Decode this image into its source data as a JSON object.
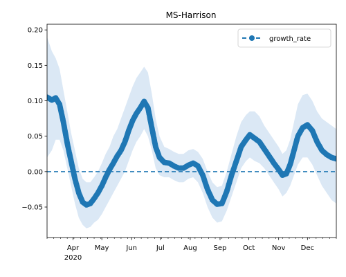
{
  "chart_data": {
    "type": "line",
    "title": "MS-Harrison",
    "xlabel": "",
    "ylabel": "",
    "x_range": [
      "2020-03-05",
      "2020-12-31"
    ],
    "ylim": [
      -0.093,
      0.208
    ],
    "yticks": [
      -0.05,
      0.0,
      0.05,
      0.1,
      0.15,
      0.2
    ],
    "ytick_labels": [
      "−0.05",
      "0.00",
      "0.05",
      "0.10",
      "0.15",
      "0.20"
    ],
    "xticks": [
      {
        "date": "2020-04-01",
        "label": "Apr",
        "sublabel": "2020"
      },
      {
        "date": "2020-05-01",
        "label": "May",
        "sublabel": ""
      },
      {
        "date": "2020-06-01",
        "label": "Jun",
        "sublabel": ""
      },
      {
        "date": "2020-07-01",
        "label": "Jul",
        "sublabel": ""
      },
      {
        "date": "2020-08-01",
        "label": "Aug",
        "sublabel": ""
      },
      {
        "date": "2020-09-01",
        "label": "Sep",
        "sublabel": ""
      },
      {
        "date": "2020-10-01",
        "label": "Oct",
        "sublabel": ""
      },
      {
        "date": "2020-11-01",
        "label": "Nov",
        "sublabel": ""
      },
      {
        "date": "2020-12-01",
        "label": "Dec",
        "sublabel": ""
      }
    ],
    "grid": false,
    "legend": {
      "position": "top-right"
    },
    "reference_line": {
      "y": 0.0,
      "style": "dashed",
      "color": "#1f77b4"
    },
    "series": [
      {
        "name": "growth_rate",
        "color": "#1f77b4",
        "band_color": "#dbe8f5",
        "points": [
          {
            "x": "2020-03-05",
            "y": 0.105,
            "lo": 0.02,
            "hi": 0.19
          },
          {
            "x": "2020-03-10",
            "y": 0.101,
            "lo": 0.03,
            "hi": 0.17
          },
          {
            "x": "2020-03-14",
            "y": 0.104,
            "lo": 0.045,
            "hi": 0.16
          },
          {
            "x": "2020-03-18",
            "y": 0.095,
            "lo": 0.045,
            "hi": 0.145
          },
          {
            "x": "2020-03-22",
            "y": 0.07,
            "lo": 0.03,
            "hi": 0.115
          },
          {
            "x": "2020-03-26",
            "y": 0.04,
            "lo": 0.005,
            "hi": 0.085
          },
          {
            "x": "2020-03-30",
            "y": 0.015,
            "lo": -0.02,
            "hi": 0.055
          },
          {
            "x": "2020-04-03",
            "y": -0.01,
            "lo": -0.045,
            "hi": 0.03
          },
          {
            "x": "2020-04-07",
            "y": -0.03,
            "lo": -0.065,
            "hi": 0.005
          },
          {
            "x": "2020-04-11",
            "y": -0.043,
            "lo": -0.075,
            "hi": -0.01
          },
          {
            "x": "2020-04-15",
            "y": -0.047,
            "lo": -0.08,
            "hi": -0.015
          },
          {
            "x": "2020-04-19",
            "y": -0.045,
            "lo": -0.078,
            "hi": -0.015
          },
          {
            "x": "2020-04-23",
            "y": -0.038,
            "lo": -0.072,
            "hi": -0.008
          },
          {
            "x": "2020-04-27",
            "y": -0.03,
            "lo": -0.068,
            "hi": 0.0
          },
          {
            "x": "2020-05-01",
            "y": -0.02,
            "lo": -0.06,
            "hi": 0.012
          },
          {
            "x": "2020-05-05",
            "y": -0.008,
            "lo": -0.05,
            "hi": 0.025
          },
          {
            "x": "2020-05-09",
            "y": 0.003,
            "lo": -0.04,
            "hi": 0.035
          },
          {
            "x": "2020-05-13",
            "y": 0.012,
            "lo": -0.03,
            "hi": 0.05
          },
          {
            "x": "2020-05-17",
            "y": 0.022,
            "lo": -0.02,
            "hi": 0.06
          },
          {
            "x": "2020-05-21",
            "y": 0.03,
            "lo": -0.01,
            "hi": 0.075
          },
          {
            "x": "2020-05-25",
            "y": 0.042,
            "lo": 0.0,
            "hi": 0.09
          },
          {
            "x": "2020-05-29",
            "y": 0.058,
            "lo": 0.015,
            "hi": 0.105
          },
          {
            "x": "2020-06-02",
            "y": 0.072,
            "lo": 0.03,
            "hi": 0.12
          },
          {
            "x": "2020-06-06",
            "y": 0.082,
            "lo": 0.042,
            "hi": 0.132
          },
          {
            "x": "2020-06-10",
            "y": 0.09,
            "lo": 0.05,
            "hi": 0.14
          },
          {
            "x": "2020-06-14",
            "y": 0.099,
            "lo": 0.06,
            "hi": 0.148
          },
          {
            "x": "2020-06-18",
            "y": 0.09,
            "lo": 0.05,
            "hi": 0.14
          },
          {
            "x": "2020-06-22",
            "y": 0.062,
            "lo": 0.03,
            "hi": 0.11
          },
          {
            "x": "2020-06-26",
            "y": 0.035,
            "lo": 0.005,
            "hi": 0.075
          },
          {
            "x": "2020-06-30",
            "y": 0.02,
            "lo": -0.005,
            "hi": 0.05
          },
          {
            "x": "2020-07-05",
            "y": 0.013,
            "lo": -0.008,
            "hi": 0.035
          },
          {
            "x": "2020-07-10",
            "y": 0.012,
            "lo": -0.008,
            "hi": 0.032
          },
          {
            "x": "2020-07-15",
            "y": 0.008,
            "lo": -0.012,
            "hi": 0.028
          },
          {
            "x": "2020-07-20",
            "y": 0.005,
            "lo": -0.015,
            "hi": 0.025
          },
          {
            "x": "2020-07-25",
            "y": 0.005,
            "lo": -0.015,
            "hi": 0.025
          },
          {
            "x": "2020-07-30",
            "y": 0.009,
            "lo": -0.01,
            "hi": 0.03
          },
          {
            "x": "2020-08-04",
            "y": 0.012,
            "lo": -0.008,
            "hi": 0.032
          },
          {
            "x": "2020-08-09",
            "y": 0.008,
            "lo": -0.015,
            "hi": 0.028
          },
          {
            "x": "2020-08-14",
            "y": -0.005,
            "lo": -0.03,
            "hi": 0.018
          },
          {
            "x": "2020-08-19",
            "y": -0.025,
            "lo": -0.05,
            "hi": 0.0
          },
          {
            "x": "2020-08-24",
            "y": -0.04,
            "lo": -0.065,
            "hi": -0.015
          },
          {
            "x": "2020-08-29",
            "y": -0.046,
            "lo": -0.072,
            "hi": -0.022
          },
          {
            "x": "2020-09-03",
            "y": -0.045,
            "lo": -0.07,
            "hi": -0.02
          },
          {
            "x": "2020-09-08",
            "y": -0.028,
            "lo": -0.055,
            "hi": 0.0
          },
          {
            "x": "2020-09-13",
            "y": -0.005,
            "lo": -0.035,
            "hi": 0.025
          },
          {
            "x": "2020-09-18",
            "y": 0.015,
            "lo": -0.015,
            "hi": 0.05
          },
          {
            "x": "2020-09-23",
            "y": 0.035,
            "lo": 0.005,
            "hi": 0.07
          },
          {
            "x": "2020-09-28",
            "y": 0.045,
            "lo": 0.015,
            "hi": 0.08
          },
          {
            "x": "2020-10-02",
            "y": 0.052,
            "lo": 0.02,
            "hi": 0.085
          },
          {
            "x": "2020-10-07",
            "y": 0.047,
            "lo": 0.015,
            "hi": 0.085
          },
          {
            "x": "2020-10-12",
            "y": 0.042,
            "lo": 0.012,
            "hi": 0.078
          },
          {
            "x": "2020-10-17",
            "y": 0.032,
            "lo": 0.005,
            "hi": 0.065
          },
          {
            "x": "2020-10-22",
            "y": 0.022,
            "lo": -0.005,
            "hi": 0.055
          },
          {
            "x": "2020-10-27",
            "y": 0.012,
            "lo": -0.015,
            "hi": 0.045
          },
          {
            "x": "2020-11-01",
            "y": 0.003,
            "lo": -0.025,
            "hi": 0.035
          },
          {
            "x": "2020-11-05",
            "y": -0.005,
            "lo": -0.035,
            "hi": 0.025
          },
          {
            "x": "2020-11-09",
            "y": -0.003,
            "lo": -0.03,
            "hi": 0.03
          },
          {
            "x": "2020-11-13",
            "y": 0.01,
            "lo": -0.02,
            "hi": 0.045
          },
          {
            "x": "2020-11-17",
            "y": 0.03,
            "lo": -0.005,
            "hi": 0.07
          },
          {
            "x": "2020-11-21",
            "y": 0.05,
            "lo": 0.01,
            "hi": 0.095
          },
          {
            "x": "2020-11-26",
            "y": 0.062,
            "lo": 0.02,
            "hi": 0.108
          },
          {
            "x": "2020-12-01",
            "y": 0.066,
            "lo": 0.02,
            "hi": 0.11
          },
          {
            "x": "2020-12-06",
            "y": 0.058,
            "lo": 0.01,
            "hi": 0.1
          },
          {
            "x": "2020-12-11",
            "y": 0.042,
            "lo": -0.005,
            "hi": 0.085
          },
          {
            "x": "2020-12-16",
            "y": 0.03,
            "lo": -0.02,
            "hi": 0.075
          },
          {
            "x": "2020-12-21",
            "y": 0.024,
            "lo": -0.03,
            "hi": 0.07
          },
          {
            "x": "2020-12-26",
            "y": 0.02,
            "lo": -0.04,
            "hi": 0.065
          },
          {
            "x": "2020-12-31",
            "y": 0.018,
            "lo": -0.045,
            "hi": 0.06
          }
        ]
      }
    ]
  }
}
